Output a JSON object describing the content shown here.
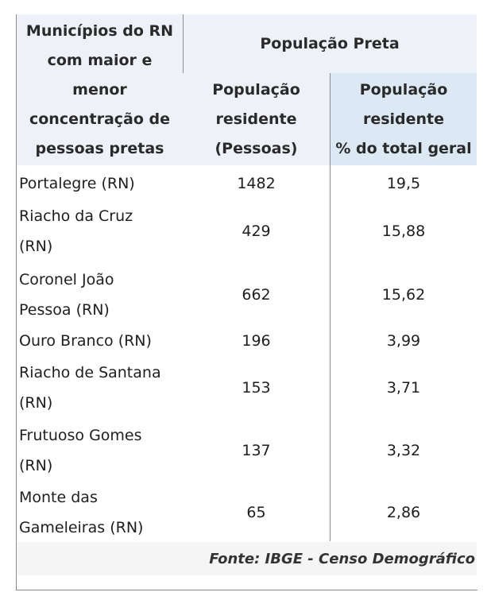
{
  "header": {
    "col1_line1": "Municípios do RN",
    "col1_line2": "com maior e",
    "col1_line3": "menor",
    "col1_line4": "concentração de",
    "col1_line5": "pessoas pretas",
    "group_title": "População Preta",
    "col2_line1": "População",
    "col2_line2": "residente",
    "col2_line3": "(Pessoas)",
    "col3_line1": "População",
    "col3_line2": "residente",
    "col3_line3": "% do total geral"
  },
  "rows": [
    {
      "name_lines": [
        "Portalegre (RN)"
      ],
      "population": "1482",
      "percent": "19,5"
    },
    {
      "name_lines": [
        "Riacho da Cruz",
        "(RN)"
      ],
      "population": "429",
      "percent": "15,88"
    },
    {
      "name_lines": [
        "Coronel João",
        "Pessoa (RN)"
      ],
      "population": "662",
      "percent": "15,62"
    },
    {
      "name_lines": [
        "Ouro Branco (RN)"
      ],
      "population": "196",
      "percent": "3,99"
    },
    {
      "name_lines": [
        "Riacho de Santana",
        "(RN)"
      ],
      "population": "153",
      "percent": "3,71"
    },
    {
      "name_lines": [
        "Frutuoso Gomes",
        "(RN)"
      ],
      "population": "137",
      "percent": "3,32"
    },
    {
      "name_lines": [
        "Monte das",
        "Gameleiras (RN)"
      ],
      "population": "65",
      "percent": "2,86"
    }
  ],
  "footer": "Fonte: IBGE - Censo Demográfico"
}
